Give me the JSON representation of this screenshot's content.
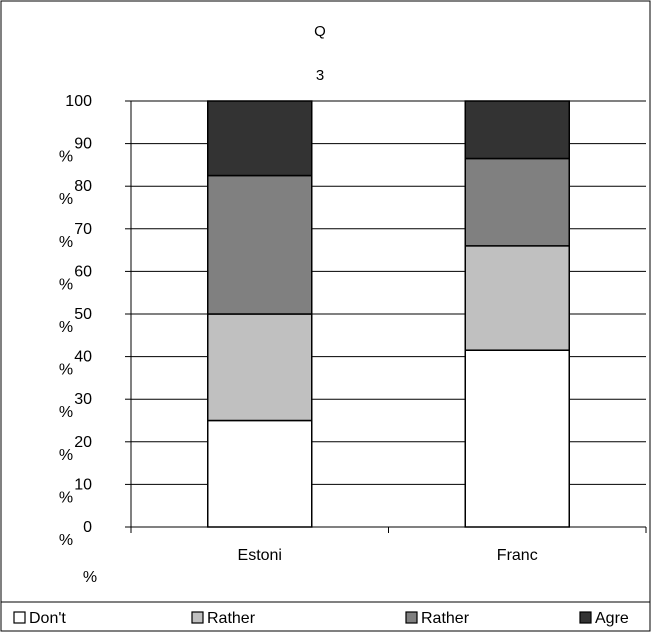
{
  "chart_data": {
    "type": "bar",
    "stacked": true,
    "title_lines": [
      "Q",
      "3"
    ],
    "categories": [
      "Estoni",
      "Franc"
    ],
    "series": [
      {
        "name": "Don't",
        "color": "#ffffff",
        "values": [
          25,
          41.5
        ]
      },
      {
        "name": "Rather",
        "color": "#c0c0c0",
        "values": [
          25,
          24.5
        ]
      },
      {
        "name": "Rather",
        "color": "#808080",
        "values": [
          32.5,
          20.5
        ]
      },
      {
        "name": "Agre",
        "color": "#333333",
        "values": [
          17.5,
          13.5
        ]
      }
    ],
    "ylim": [
      0,
      100
    ],
    "y_ticks": [
      "100",
      "90",
      "80",
      "70",
      "60",
      "50",
      "40",
      "30",
      "20",
      "10",
      "0"
    ],
    "y_tick_values": [
      100,
      90,
      80,
      70,
      60,
      50,
      40,
      30,
      20,
      10,
      0
    ],
    "y_unit": "%",
    "grid": true,
    "legend_position": "bottom"
  }
}
